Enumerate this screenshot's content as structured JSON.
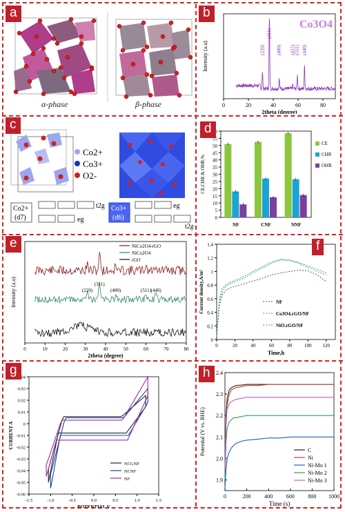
{
  "figure": {
    "labels": [
      "a",
      "b",
      "c",
      "d",
      "e",
      "f",
      "g",
      "h"
    ],
    "panel_a": {
      "alpha": "α-phase",
      "beta": "β-phase"
    },
    "panel_c": {
      "legend": [
        "Co2+",
        "Co3+",
        "O2-"
      ],
      "co2_label": "Co2+",
      "co2_config": "(d7)",
      "co3_label": "Co3+",
      "co3_config": "(d6)",
      "t2g": "t2g",
      "eg": "eg"
    }
  },
  "chart_data": [
    {
      "type": "line",
      "id": "b",
      "title": "Co3O4",
      "xlabel": "2theta (degree)",
      "ylabel": "Intensity (a.u)",
      "xlim": [
        0,
        90
      ],
      "xticks": [
        0,
        20,
        40,
        60,
        80
      ],
      "annotations": [
        {
          "label": "(220)",
          "x": 31.3
        },
        {
          "label": "(311)",
          "x": 36.9
        },
        {
          "label": "(400)",
          "x": 44.8
        },
        {
          "label": "(422)",
          "x": 55.7
        },
        {
          "label": "(511)",
          "x": 59.4
        },
        {
          "label": "(440)",
          "x": 65.2
        }
      ],
      "series": [
        {
          "color": "#8b2fb8"
        }
      ]
    },
    {
      "type": "bar",
      "id": "d",
      "xlabel": "",
      "ylabel": "CE,CHR & OHR,%",
      "ylim": [
        0,
        60
      ],
      "yticks": [
        0,
        5,
        10,
        15,
        20,
        25,
        30,
        35,
        40,
        45,
        50,
        55,
        60
      ],
      "categories": [
        "NF",
        "CNF",
        "NNF"
      ],
      "legend_position": "right",
      "series": [
        {
          "name": "CE",
          "values": [
            51,
            52.5,
            58.5
          ],
          "color": "#8cc63f"
        },
        {
          "name": "CHR",
          "values": [
            18,
            27,
            26.5
          ],
          "color": "#1ba3d6"
        },
        {
          "name": "OHR",
          "values": [
            9,
            14,
            15.5
          ],
          "color": "#7b3fa0"
        }
      ]
    },
    {
      "type": "line",
      "id": "e",
      "xlabel": "2theta (degree)",
      "ylabel": "Intensity (a.u)",
      "xlim": [
        0,
        80
      ],
      "xticks": [
        0,
        10,
        20,
        30,
        40,
        50,
        60,
        70,
        80
      ],
      "annotations": [
        {
          "label": "(311)",
          "x": 37
        },
        {
          "label": "(220)",
          "x": 31
        },
        {
          "label": "(400)",
          "x": 45
        },
        {
          "label": "(511)",
          "x": 60
        },
        {
          "label": "(440)",
          "x": 65
        }
      ],
      "series": [
        {
          "name": "NiCo2O4-rGO",
          "color": "#8b1a1a"
        },
        {
          "name": "NiCo2O4",
          "color": "#2e8b57"
        },
        {
          "name": "rGO",
          "color": "#111111"
        }
      ]
    },
    {
      "type": "line",
      "id": "f",
      "xlabel": "Time,h",
      "ylabel": "Current density,A/m²",
      "xlim": [
        0,
        130
      ],
      "ylim": [
        0,
        1.4
      ],
      "xticks": [
        0,
        20,
        40,
        60,
        80,
        100,
        120
      ],
      "yticks": [
        0,
        0.2,
        0.4,
        0.6,
        0.8,
        1,
        1.2,
        1.4
      ],
      "x": [
        0,
        3,
        6,
        10,
        15,
        20,
        30,
        40,
        50,
        60,
        70,
        80,
        90,
        100,
        110,
        120
      ],
      "series": [
        {
          "name": "NF",
          "values": [
            0.05,
            0.5,
            0.65,
            0.72,
            0.76,
            0.78,
            0.82,
            0.86,
            0.9,
            0.95,
            0.98,
            1.0,
            1.02,
            1.01,
            0.95,
            0.85
          ],
          "color": "#555555"
        },
        {
          "name": "Co3O4.rGO/NF",
          "values": [
            0.05,
            0.55,
            0.7,
            0.78,
            0.82,
            0.85,
            0.9,
            0.98,
            1.05,
            1.12,
            1.17,
            1.16,
            1.12,
            1.06,
            1.0,
            0.95
          ],
          "color": "#2aa0b0"
        },
        {
          "name": "NiO.rGO/NF",
          "values": [
            0.05,
            0.6,
            0.75,
            0.8,
            0.84,
            0.87,
            0.93,
            1.0,
            1.07,
            1.14,
            1.18,
            1.17,
            1.13,
            1.08,
            1.03,
            0.98
          ],
          "color": "#3c9c3c"
        }
      ]
    },
    {
      "type": "line",
      "id": "g",
      "xlabel": "POTENTIAL V",
      "ylabel": "CURRENT A",
      "xlim": [
        -1.5,
        1.5
      ],
      "ylim": [
        -0.06,
        0.04
      ],
      "xticks": [
        -1.5,
        -1.0,
        -0.5,
        0.0,
        0.5,
        1.0,
        1.5
      ],
      "yticks": [
        -0.06,
        -0.05,
        -0.04,
        -0.03,
        -0.02,
        -0.01,
        0,
        0.01,
        0.02,
        0.03,
        0.04
      ],
      "series": [
        {
          "name": "NCGNF",
          "color": "#222222"
        },
        {
          "name": "NCNF",
          "color": "#1a3fa0"
        },
        {
          "name": "NF",
          "color": "#a02aa0"
        }
      ]
    },
    {
      "type": "line",
      "id": "h",
      "xlabel": "Time (s)",
      "ylabel": "Potential (V vs. RHE)",
      "xlim": [
        0,
        1000
      ],
      "ylim": [
        1.85,
        2.4
      ],
      "xticks": [
        0,
        200,
        400,
        600,
        800,
        1000
      ],
      "yticks": [
        1.9,
        2.0,
        2.1,
        2.2,
        2.3,
        2.4
      ],
      "legend_position": "bottom-right",
      "x": [
        0,
        10,
        20,
        40,
        60,
        80,
        100,
        150,
        200,
        300,
        400,
        500,
        600,
        700,
        800,
        900,
        1000
      ],
      "series": [
        {
          "name": "C",
          "values": [
            1.9,
            2.2,
            2.28,
            2.32,
            2.33,
            2.335,
            2.34,
            2.342,
            2.345,
            2.345,
            2.345,
            2.345,
            2.345,
            2.345,
            2.345,
            2.345,
            2.345
          ],
          "color": "#222222"
        },
        {
          "name": "Ni",
          "values": [
            1.9,
            2.15,
            2.25,
            2.3,
            2.32,
            2.325,
            2.33,
            2.335,
            2.34,
            2.34,
            2.345,
            2.345,
            2.345,
            2.345,
            2.345,
            2.345,
            2.345
          ],
          "color": "#c0392b"
        },
        {
          "name": "Ni-Mo 1",
          "values": [
            1.86,
            1.95,
            2.0,
            2.03,
            2.05,
            2.06,
            2.07,
            2.08,
            2.085,
            2.09,
            2.095,
            2.095,
            2.1,
            2.1,
            2.1,
            2.1,
            2.1
          ],
          "color": "#1f5fb4"
        },
        {
          "name": "Ni-Mo 2",
          "values": [
            1.9,
            2.08,
            2.14,
            2.17,
            2.18,
            2.19,
            2.19,
            2.195,
            2.2,
            2.2,
            2.2,
            2.2,
            2.2,
            2.2,
            2.2,
            2.2,
            2.2
          ],
          "color": "#2aa05a"
        },
        {
          "name": "Ni-Mo 3",
          "values": [
            1.95,
            2.18,
            2.23,
            2.255,
            2.265,
            2.27,
            2.275,
            2.28,
            2.285,
            2.285,
            2.285,
            2.285,
            2.285,
            2.285,
            2.285,
            2.285,
            2.285
          ],
          "color": "#c060c0"
        }
      ]
    }
  ]
}
